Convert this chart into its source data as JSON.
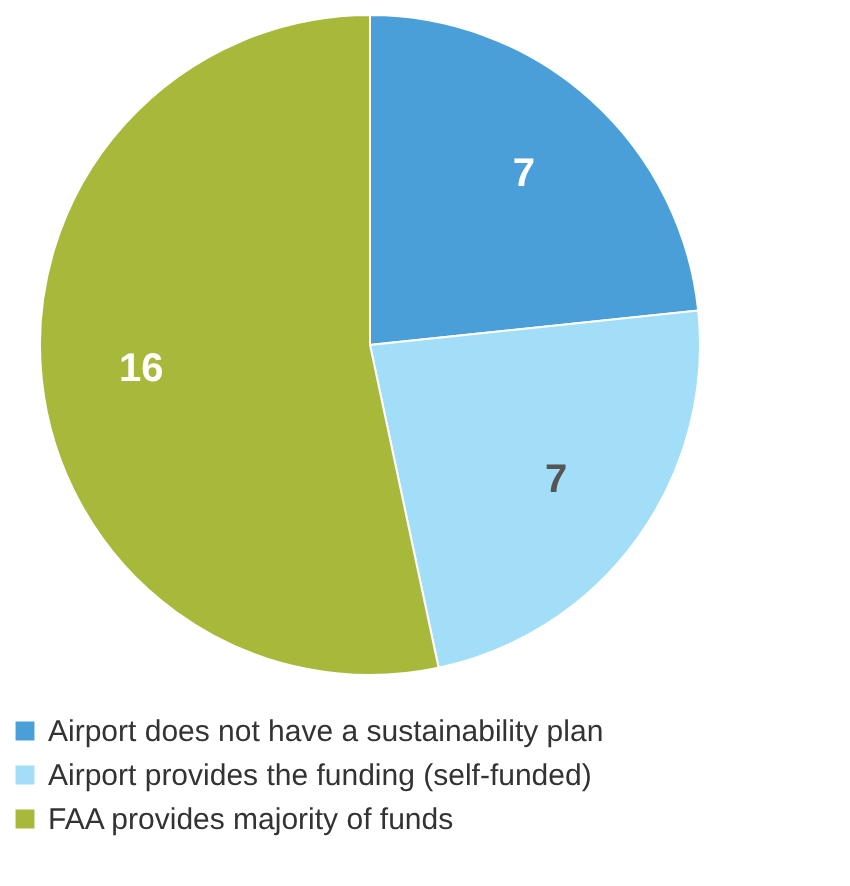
{
  "chart_data": {
    "type": "pie",
    "categories": [
      "Airport does not have a sustainability plan",
      "Airport provides the funding (self-funded)",
      "FAA provides majority of funds"
    ],
    "values": [
      7,
      7,
      16
    ],
    "colors": [
      "#4b9fd9",
      "#a2def7",
      "#a8b83a"
    ],
    "data_labels": true,
    "legend": "bottom"
  }
}
